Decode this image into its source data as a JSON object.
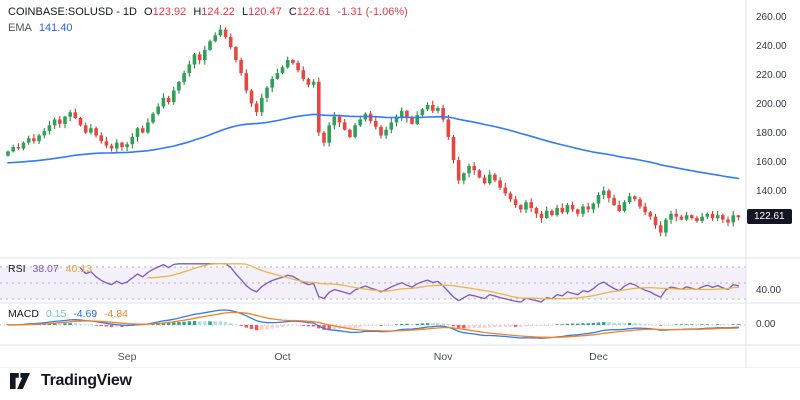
{
  "header": {
    "title": "COINBASE:SOLUSD - 1D",
    "o_label": "O",
    "o_value": "123.92",
    "h_label": "H",
    "h_value": "124.22",
    "l_label": "L",
    "l_value": "120.47",
    "c_label": "C",
    "c_value": "122.61",
    "change": "-1.31 (-1.06%)",
    "ema_label": "EMA",
    "ema_value": "141.40"
  },
  "rsi_panel": {
    "label": "RSI",
    "value": "38.07",
    "ma_value": "40.13",
    "axis_label": "40.00"
  },
  "macd_panel": {
    "label": "MACD",
    "hist_value": "0.15",
    "line_value": "-4.69",
    "signal_value": "-4.84",
    "axis_label": "0.00"
  },
  "price_axis": {
    "labels": [
      "260.00",
      "240.00",
      "220.00",
      "200.00",
      "180.00",
      "160.00",
      "140.00"
    ],
    "last_price": "122.61"
  },
  "time_axis": {
    "months": [
      {
        "label": "Sep",
        "index": 23
      },
      {
        "label": "Oct",
        "index": 53
      },
      {
        "label": "Nov",
        "index": 84
      },
      {
        "label": "Dec",
        "index": 114
      }
    ]
  },
  "logo": {
    "text": "TradingView"
  },
  "colors": {
    "up": "#2fa156",
    "down": "#e8463f",
    "up_wick": "#1f7a3a",
    "down_wick": "#b23430",
    "ema": "#3579f6",
    "rsi": "#7e57c2",
    "rsi_ma": "#e9b64a",
    "rsi_band": "#7e57c2",
    "macd_line": "#2d7cf5",
    "macd_signal": "#f7821f",
    "hist_grow_above": "#26a69a",
    "hist_fall_above": "#b2dfdb",
    "hist_fall_below": "#ff5252",
    "hist_grow_below": "#ffcdd2",
    "badge_bg": "#131722",
    "value_red": "#f23645",
    "value_blue": "#2962ff",
    "separator": "#e0e3eb"
  },
  "chart_data": {
    "type": "candlestick",
    "symbol": "COINBASE:SOLUSD",
    "interval": "1D",
    "title": "COINBASE:SOLUSD daily candles with EMA, RSI(14) and MACD panels",
    "x_range": "early Aug to late Dec (daily bars)",
    "price_axis_ticks": [
      260,
      240,
      220,
      200,
      180,
      160,
      140
    ],
    "price_range_visible": [
      108,
      262
    ],
    "rsi_levels": [
      70,
      50,
      30
    ],
    "macd_zero": 0,
    "last_candle": {
      "open": 123.92,
      "high": 124.22,
      "low": 120.47,
      "close": 122.61
    },
    "readouts": {
      "ema": 141.4,
      "rsi": 38.07,
      "rsi_ma": 40.13,
      "macd_hist": 0.15,
      "macd": -4.69,
      "signal": -4.84
    },
    "closes": [
      168,
      171,
      170,
      174,
      177,
      175,
      179,
      182,
      186,
      190,
      187,
      192,
      195,
      191,
      186,
      181,
      184,
      179,
      175,
      172,
      170,
      174,
      171,
      173,
      178,
      184,
      181,
      188,
      194,
      199,
      205,
      202,
      210,
      216,
      222,
      228,
      235,
      231,
      238,
      244,
      248,
      252,
      247,
      240,
      231,
      222,
      210,
      201,
      195,
      205,
      212,
      218,
      222,
      226,
      231,
      229,
      224,
      218,
      214,
      216,
      181,
      174,
      186,
      192,
      188,
      183,
      178,
      186,
      190,
      194,
      189,
      185,
      179,
      183,
      188,
      192,
      196,
      191,
      187,
      193,
      197,
      200,
      196,
      198,
      190,
      178,
      162,
      148,
      153,
      158,
      155,
      150,
      146,
      152,
      148,
      143,
      139,
      135,
      131,
      128,
      133,
      129,
      125,
      122,
      127,
      124,
      129,
      126,
      131,
      128,
      125,
      130,
      128,
      132,
      138,
      141,
      136,
      131,
      127,
      133,
      137,
      135,
      130,
      126,
      123,
      117,
      112,
      121,
      125,
      123,
      121,
      124,
      122,
      120,
      123,
      125,
      122,
      124,
      121,
      119,
      123.92,
      122.61
    ]
  }
}
